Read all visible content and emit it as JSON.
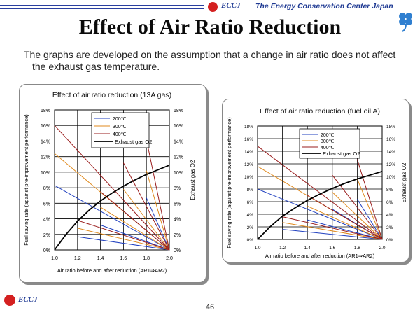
{
  "header": {
    "logo_text": "ECCJ",
    "org": "The Energy Conservation Center Japan"
  },
  "title": "Effect of Air Ratio Reduction",
  "intro": {
    "line1": "The graphs are developed on the assumption that a change in air ratio does not affect",
    "line2": "the exhaust gas temperature."
  },
  "footer": {
    "logo_text": "ECCJ",
    "page_number": "46"
  },
  "colors": {
    "c200": "#1f3fbf",
    "c300": "#e08a1e",
    "c400": "#9a1d1d",
    "o2": "#000000",
    "rule": "#2a3f9e"
  },
  "chart_data": [
    {
      "type": "line",
      "title": "Effect of air ratio reduction (13A gas)",
      "xlabel": "Air ratio before and after reduction (AR1⇒AR2)",
      "ylabel": "Fuel saving rate (against pre-improvement performance)",
      "y2label": "Exhaust gas O2",
      "xlim": [
        1.0,
        2.0
      ],
      "ylim": [
        0,
        18
      ],
      "xticks": [
        "1.0",
        "1.2",
        "1.4",
        "1.6",
        "1.8",
        "2.0"
      ],
      "yticks": [
        "0%",
        "2%",
        "4%",
        "6%",
        "8%",
        "10%",
        "12%",
        "14%",
        "16%",
        "18%"
      ],
      "legend": [
        "200℃",
        "300℃",
        "400℃",
        "Exhaust gas O2"
      ],
      "series": [
        {
          "name": "200℃",
          "key": "c200",
          "segments": [
            {
              "x": [
                1.2,
                2.0
              ],
              "y": [
                1.7,
                0
              ]
            },
            {
              "x": [
                1.4,
                2.0
              ],
              "y": [
                3.2,
                0
              ]
            },
            {
              "x": [
                1.6,
                2.0
              ],
              "y": [
                5.0,
                0
              ]
            },
            {
              "x": [
                1.8,
                2.0
              ],
              "y": [
                6.7,
                0
              ]
            },
            {
              "x": [
                1.0,
                2.0
              ],
              "y": [
                8.3,
                0
              ]
            }
          ]
        },
        {
          "name": "300℃",
          "key": "c300",
          "segments": [
            {
              "x": [
                1.2,
                2.0
              ],
              "y": [
                2.8,
                0
              ]
            },
            {
              "x": [
                1.4,
                2.0
              ],
              "y": [
                5.5,
                0
              ]
            },
            {
              "x": [
                1.6,
                2.0
              ],
              "y": [
                7.8,
                0
              ]
            },
            {
              "x": [
                1.8,
                2.0
              ],
              "y": [
                10.2,
                0
              ]
            },
            {
              "x": [
                1.0,
                2.0
              ],
              "y": [
                12.4,
                0
              ]
            }
          ]
        },
        {
          "name": "400℃",
          "key": "c400",
          "segments": [
            {
              "x": [
                1.2,
                2.0
              ],
              "y": [
                3.8,
                0
              ]
            },
            {
              "x": [
                1.4,
                2.0
              ],
              "y": [
                7.5,
                0
              ]
            },
            {
              "x": [
                1.6,
                2.0
              ],
              "y": [
                11.2,
                0
              ]
            },
            {
              "x": [
                1.8,
                2.0
              ],
              "y": [
                14.2,
                0
              ]
            },
            {
              "x": [
                1.0,
                2.0
              ],
              "y": [
                16.0,
                0
              ]
            }
          ]
        },
        {
          "name": "Exhaust gas O2",
          "key": "o2",
          "segments": [
            {
              "x": [
                1.0,
                1.1,
                1.2,
                1.3,
                1.4,
                1.5,
                1.6,
                1.7,
                1.8,
                1.9,
                2.0
              ],
              "y": [
                0,
                2.0,
                3.7,
                5.1,
                6.3,
                7.3,
                8.2,
                9.0,
                9.7,
                10.3,
                10.9
              ]
            }
          ]
        }
      ]
    },
    {
      "type": "line",
      "title": "Effect of air ratio reduction (fuel oil A)",
      "xlabel": "Air ratio before and after reduction (AR1⇒AR2)",
      "ylabel": "Fuel saving rate (against pre-improvement performance)",
      "y2label": "Exhaust gas O2",
      "xlim": [
        1.0,
        2.0
      ],
      "ylim": [
        0,
        18
      ],
      "xticks": [
        "1.0",
        "1.2",
        "1.4",
        "1.6",
        "1.8",
        "2.0"
      ],
      "yticks": [
        "0%",
        "2%",
        "4%",
        "6%",
        "8%",
        "10%",
        "12%",
        "14%",
        "16%",
        "18%"
      ],
      "legend": [
        "200℃",
        "300℃",
        "400℃",
        "Exhaust gas O2"
      ],
      "series": [
        {
          "name": "200℃",
          "key": "c200",
          "segments": [
            {
              "x": [
                1.2,
                2.0
              ],
              "y": [
                1.6,
                0
              ]
            },
            {
              "x": [
                1.4,
                2.0
              ],
              "y": [
                3.1,
                0
              ]
            },
            {
              "x": [
                1.6,
                2.0
              ],
              "y": [
                4.8,
                0
              ]
            },
            {
              "x": [
                1.8,
                2.0
              ],
              "y": [
                6.4,
                0
              ]
            },
            {
              "x": [
                1.0,
                2.0
              ],
              "y": [
                8.0,
                0
              ]
            }
          ]
        },
        {
          "name": "300℃",
          "key": "c300",
          "segments": [
            {
              "x": [
                1.2,
                2.0
              ],
              "y": [
                2.7,
                0
              ]
            },
            {
              "x": [
                1.4,
                2.0
              ],
              "y": [
                5.3,
                0
              ]
            },
            {
              "x": [
                1.6,
                2.0
              ],
              "y": [
                7.5,
                0
              ]
            },
            {
              "x": [
                1.8,
                2.0
              ],
              "y": [
                9.6,
                0
              ]
            },
            {
              "x": [
                1.0,
                2.0
              ],
              "y": [
                11.6,
                0
              ]
            }
          ]
        },
        {
          "name": "400℃",
          "key": "c400",
          "segments": [
            {
              "x": [
                1.2,
                2.0
              ],
              "y": [
                3.6,
                0
              ]
            },
            {
              "x": [
                1.4,
                2.0
              ],
              "y": [
                7.0,
                0
              ]
            },
            {
              "x": [
                1.6,
                2.0
              ],
              "y": [
                10.2,
                0
              ]
            },
            {
              "x": [
                1.8,
                2.0
              ],
              "y": [
                12.7,
                0
              ]
            },
            {
              "x": [
                1.0,
                2.0
              ],
              "y": [
                14.8,
                0
              ]
            }
          ]
        },
        {
          "name": "Exhaust gas O2",
          "key": "o2",
          "segments": [
            {
              "x": [
                1.0,
                1.1,
                1.2,
                1.3,
                1.4,
                1.5,
                1.6,
                1.7,
                1.8,
                1.9,
                2.0
              ],
              "y": [
                0,
                2.0,
                3.7,
                5.0,
                6.2,
                7.2,
                8.1,
                8.9,
                9.6,
                10.2,
                10.8
              ]
            }
          ]
        }
      ]
    }
  ]
}
